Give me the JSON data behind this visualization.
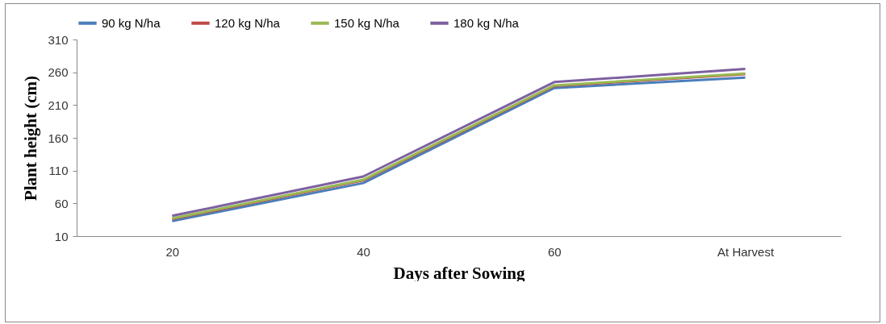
{
  "chart_data": {
    "type": "line",
    "xlabel": "Days after Sowing",
    "ylabel": "Plant height (cm)",
    "categories": [
      "20",
      "40",
      "60",
      "At Harvest"
    ],
    "series": [
      {
        "name": "90 kg N/ha",
        "color": "#4a7ebb",
        "values": [
          33,
          91,
          236,
          252
        ]
      },
      {
        "name": "120 kg N/ha",
        "color": "#be4b48",
        "values": [
          36,
          95,
          239,
          257
        ]
      },
      {
        "name": "150 kg N/ha",
        "color": "#98b954",
        "values": [
          37,
          96,
          240,
          258
        ]
      },
      {
        "name": "180 kg N/ha",
        "color": "#7d60a0",
        "values": [
          41,
          101,
          245,
          265
        ]
      }
    ],
    "ylim": [
      10,
      310
    ],
    "yticks": [
      10,
      60,
      110,
      160,
      210,
      260,
      310
    ],
    "legend": "top",
    "grid": false,
    "marker": "none",
    "line_style": "solid"
  }
}
